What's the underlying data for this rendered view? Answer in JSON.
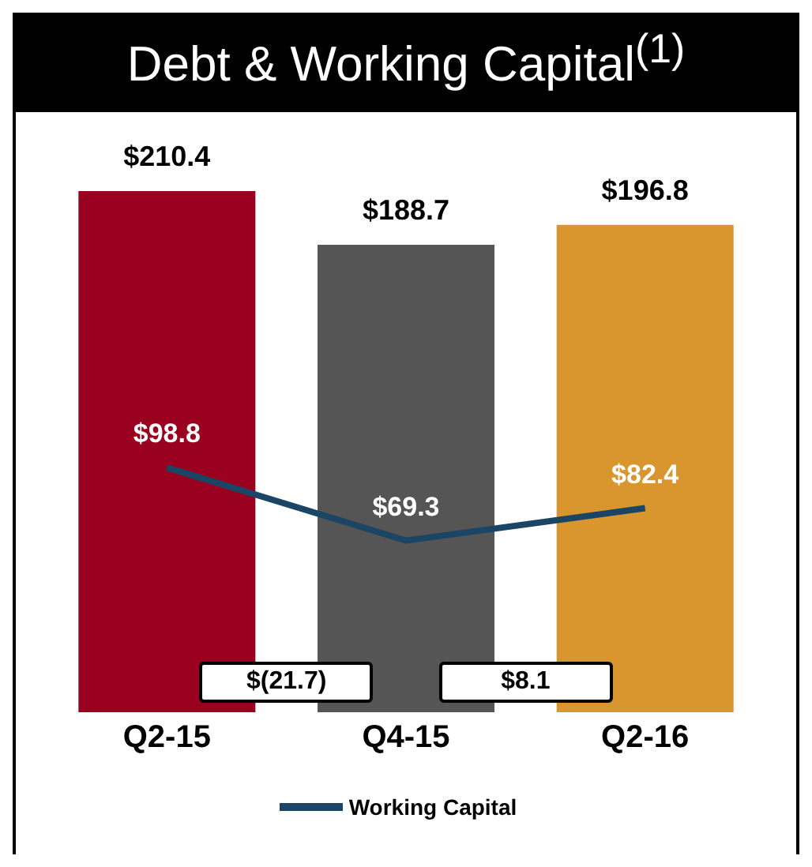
{
  "chart_data": {
    "type": "bar",
    "title": "Debt & Working Capital$^{(1)}$",
    "categories": [
      "Q2-15",
      "Q4-15",
      "Q2-16"
    ],
    "series": [
      {
        "colors": [
          "#9a0020",
          "#555555",
          "#d9962f"
        ],
        "values": [
          210.4,
          188.7,
          196.8
        ],
        "value_labels": [
          "$210.4",
          "$188.7",
          "$196.8"
        ]
      },
      {
        "type": "line",
        "name": "Working Capital",
        "color": "#1b4565",
        "values": [
          98.8,
          69.3,
          82.4
        ],
        "value_labels": [
          "$98.8",
          "$69.3",
          "$82.4"
        ]
      }
    ],
    "annotations": [
      "$(21.7)",
      "$8.1"
    ],
    "legend": "bottom",
    "marker": "none",
    "grid": false
  }
}
